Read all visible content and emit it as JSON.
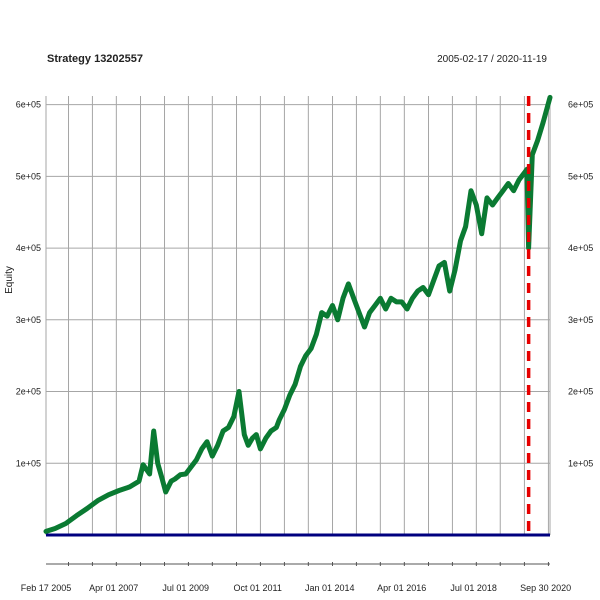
{
  "chart_data": {
    "type": "line",
    "title": "Strategy 13202557",
    "subtitle": "2005-02-17 / 2020-11-19",
    "ylabel": "Equity",
    "xlabel": "",
    "xlim": [
      "2005-02-17",
      "2020-11-19"
    ],
    "ylim": [
      0,
      612000
    ],
    "grid": true,
    "x_ticks": [
      {
        "date": "2005-02-17",
        "label": "Feb 17 2005"
      },
      {
        "date": "2007-04-01",
        "label": "Apr 01 2007"
      },
      {
        "date": "2009-07-01",
        "label": "Jul 01 2009"
      },
      {
        "date": "2011-10-01",
        "label": "Oct 01 2011"
      },
      {
        "date": "2014-01-01",
        "label": "Jan 01 2014"
      },
      {
        "date": "2016-04-01",
        "label": "Apr 01 2016"
      },
      {
        "date": "2018-07-01",
        "label": "Jul 01 2018"
      },
      {
        "date": "2020-09-30",
        "label": "Sep 30 2020"
      }
    ],
    "y_ticks": [
      {
        "value": 100000,
        "label": "1e+05"
      },
      {
        "value": 200000,
        "label": "2e+05"
      },
      {
        "value": 300000,
        "label": "3e+05"
      },
      {
        "value": 400000,
        "label": "4e+05"
      },
      {
        "value": 500000,
        "label": "5e+05"
      },
      {
        "value": 600000,
        "label": "6e+05"
      }
    ],
    "baseline": {
      "value": 0,
      "color": "#00007f"
    },
    "vline": {
      "date": "2020-03-20",
      "color": "#e60000"
    },
    "series": [
      {
        "color": "#0a7a32",
        "x": [
          "2005-02-17",
          "2005-06-01",
          "2005-10-01",
          "2006-02-01",
          "2006-06-01",
          "2006-10-01",
          "2007-02-01",
          "2007-06-01",
          "2007-10-01",
          "2008-01-15",
          "2008-03-01",
          "2008-05-15",
          "2008-07-01",
          "2008-08-15",
          "2008-10-01",
          "2008-11-15",
          "2009-01-15",
          "2009-03-01",
          "2009-05-01",
          "2009-07-01",
          "2009-09-01",
          "2009-11-01",
          "2010-01-01",
          "2010-03-01",
          "2010-05-01",
          "2010-07-01",
          "2010-09-01",
          "2010-11-01",
          "2011-01-01",
          "2011-03-01",
          "2011-05-01",
          "2011-06-15",
          "2011-08-01",
          "2011-09-15",
          "2011-11-01",
          "2012-01-01",
          "2012-03-01",
          "2012-05-01",
          "2012-06-01",
          "2012-08-01",
          "2012-10-01",
          "2012-12-01",
          "2013-02-01",
          "2013-04-01",
          "2013-06-01",
          "2013-08-01",
          "2013-10-01",
          "2013-12-01",
          "2014-02-01",
          "2014-04-01",
          "2014-06-01",
          "2014-08-01",
          "2014-10-01",
          "2014-12-01",
          "2015-02-01",
          "2015-04-01",
          "2015-06-01",
          "2015-08-01",
          "2015-10-01",
          "2015-12-01",
          "2016-02-01",
          "2016-04-01",
          "2016-06-01",
          "2016-08-01",
          "2016-10-01",
          "2016-12-01",
          "2017-02-01",
          "2017-04-01",
          "2017-06-01",
          "2017-08-01",
          "2017-10-01",
          "2017-12-01",
          "2018-02-01",
          "2018-04-01",
          "2018-06-01",
          "2018-08-01",
          "2018-10-01",
          "2018-12-01",
          "2019-02-01",
          "2019-04-01",
          "2019-06-01",
          "2019-08-01",
          "2019-10-01",
          "2019-12-01",
          "2020-02-01",
          "2020-03-01",
          "2020-03-20",
          "2020-05-01",
          "2020-07-01",
          "2020-09-01",
          "2020-11-19"
        ],
        "values": [
          5000,
          9000,
          16000,
          27000,
          37000,
          48000,
          56000,
          62000,
          67000,
          75000,
          98000,
          85000,
          145000,
          100000,
          80000,
          60000,
          75000,
          78000,
          84000,
          85000,
          95000,
          105000,
          120000,
          130000,
          110000,
          125000,
          145000,
          150000,
          165000,
          200000,
          140000,
          125000,
          135000,
          140000,
          120000,
          135000,
          145000,
          150000,
          160000,
          175000,
          195000,
          210000,
          235000,
          250000,
          260000,
          280000,
          310000,
          305000,
          320000,
          300000,
          330000,
          350000,
          330000,
          310000,
          290000,
          310000,
          320000,
          330000,
          315000,
          330000,
          325000,
          325000,
          315000,
          330000,
          340000,
          345000,
          335000,
          355000,
          375000,
          380000,
          340000,
          370000,
          410000,
          430000,
          480000,
          460000,
          420000,
          470000,
          460000,
          470000,
          480000,
          490000,
          480000,
          495000,
          505000,
          510000,
          400000,
          530000,
          550000,
          575000,
          610000
        ]
      }
    ]
  }
}
